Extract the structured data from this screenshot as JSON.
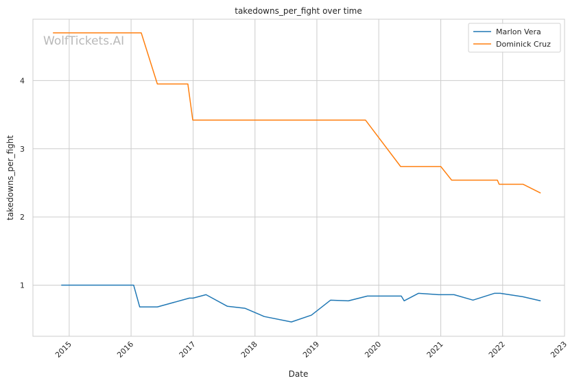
{
  "watermark": "WolfTickets.AI",
  "chart_data": {
    "type": "line",
    "title": "takedowns_per_fight over time",
    "xlabel": "Date",
    "ylabel": "takedowns_per_fight",
    "x_range": [
      "2014-06-01",
      "2023-01-01"
    ],
    "ylim": [
      0.25,
      4.9
    ],
    "x_ticks": [
      "2015",
      "2016",
      "2017",
      "2018",
      "2019",
      "2020",
      "2021",
      "2022",
      "2023"
    ],
    "y_ticks": [
      "1",
      "2",
      "3",
      "4"
    ],
    "grid": true,
    "legend_position": "top-right",
    "series": [
      {
        "name": "Marlon Vera",
        "color": "#1f77b4",
        "points": [
          [
            "2014-11-15",
            1.0
          ],
          [
            "2016-01-16",
            1.0
          ],
          [
            "2016-02-21",
            0.68
          ],
          [
            "2016-06-04",
            0.68
          ],
          [
            "2016-12-10",
            0.81
          ],
          [
            "2017-01-01",
            0.81
          ],
          [
            "2017-03-18",
            0.86
          ],
          [
            "2017-07-22",
            0.69
          ],
          [
            "2017-11-04",
            0.66
          ],
          [
            "2018-02-24",
            0.54
          ],
          [
            "2018-08-04",
            0.46
          ],
          [
            "2018-11-30",
            0.56
          ],
          [
            "2019-03-23",
            0.78
          ],
          [
            "2019-07-06",
            0.77
          ],
          [
            "2019-10-26",
            0.84
          ],
          [
            "2020-05-13",
            0.84
          ],
          [
            "2020-05-30",
            0.77
          ],
          [
            "2020-08-22",
            0.88
          ],
          [
            "2020-12-19",
            0.86
          ],
          [
            "2021-03-20",
            0.86
          ],
          [
            "2021-07-10",
            0.78
          ],
          [
            "2021-11-13",
            0.88
          ],
          [
            "2021-12-18",
            0.88
          ],
          [
            "2022-04-30",
            0.83
          ],
          [
            "2022-08-13",
            0.77
          ]
        ]
      },
      {
        "name": "Dominick Cruz",
        "color": "#ff7f0e",
        "points": [
          [
            "2014-09-27",
            4.7
          ],
          [
            "2016-03-01",
            4.7
          ],
          [
            "2016-06-04",
            3.95
          ],
          [
            "2016-12-01",
            3.95
          ],
          [
            "2016-12-30",
            3.42
          ],
          [
            "2019-10-15",
            3.42
          ],
          [
            "2020-05-09",
            2.74
          ],
          [
            "2021-01-01",
            2.74
          ],
          [
            "2021-03-06",
            2.54
          ],
          [
            "2021-12-01",
            2.54
          ],
          [
            "2021-12-11",
            2.48
          ],
          [
            "2022-05-01",
            2.48
          ],
          [
            "2022-08-13",
            2.35
          ]
        ]
      }
    ]
  }
}
